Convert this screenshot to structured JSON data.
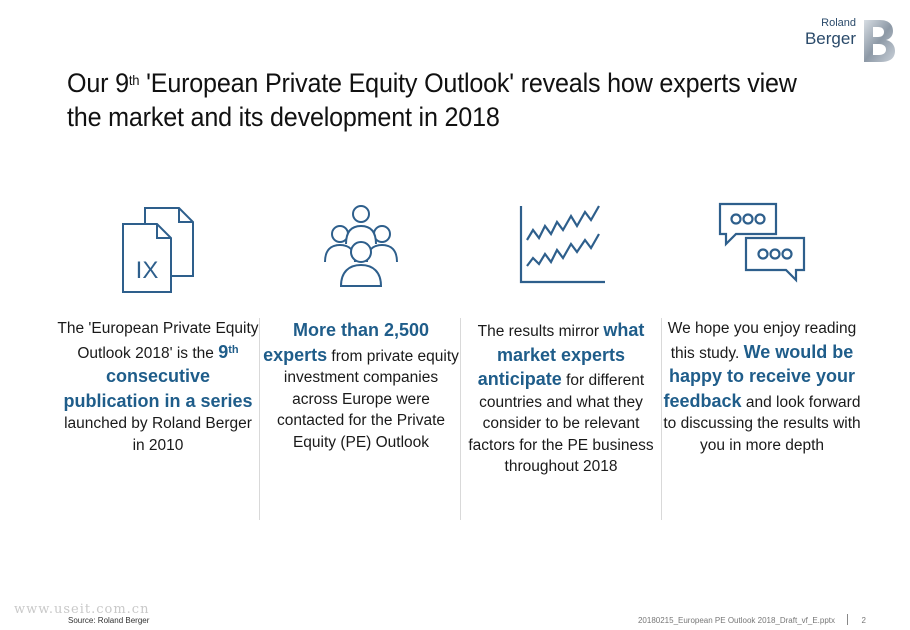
{
  "brand": {
    "line1": "Roland",
    "line2": "Berger"
  },
  "title": {
    "pre": "Our 9",
    "sup": "th",
    "post": " 'European Private Equity Outlook' reveals how experts view the market and its development in 2018"
  },
  "columns": [
    {
      "icon": "documents-ix-icon",
      "icon_label": "IX",
      "t1": "The 'European Private Equity Outlook 2018' is the ",
      "h1": "9",
      "h1sup": "th",
      "h2": " consecutive publication in a series",
      "t2": " launched by Roland Berger in 2010"
    },
    {
      "icon": "people-group-icon",
      "h1": "More than 2,500 experts",
      "t1": " from private equity investment companies across Europe were contacted for the Private Equity (PE) Outlook"
    },
    {
      "icon": "line-chart-icon",
      "t1": "The results mirror ",
      "h1": "what market experts anticipate",
      "t2": " for different countries and what they consider to be relevant factors for the PE business throughout 2018"
    },
    {
      "icon": "chat-bubbles-icon",
      "t1": "We hope you enjoy reading this study. ",
      "h1": "We would be happy to receive your feedback",
      "t2": " and look forward to discussing the results with you in more depth"
    }
  ],
  "watermark": "www.useit.com.cn",
  "footer": {
    "source": "Source: Roland Berger",
    "file": "20180215_European PE Outlook 2018_Draft_vf_E.pptx",
    "page": "2"
  },
  "colors": {
    "accent": "#1f5d8a",
    "icon": "#2e5f8c"
  }
}
